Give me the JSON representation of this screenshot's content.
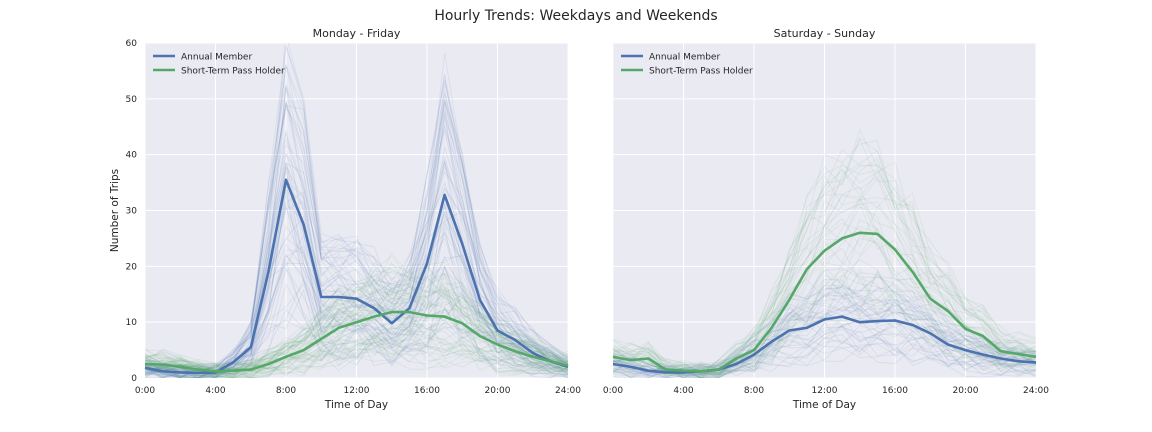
{
  "figure": {
    "title": "Hourly Trends: Weekdays and Weekends"
  },
  "style": {
    "panel_bg": "#EAEAF2",
    "grid": "#FFFFFF",
    "member_color": "#4C72B0",
    "short_term_color": "#55A868",
    "text_color": "#262626"
  },
  "chart_data": [
    {
      "type": "line",
      "title": "Monday - Friday",
      "xlabel": "Time of Day",
      "ylabel": "Number of Trips",
      "xlim": [
        0,
        24
      ],
      "ylim": [
        0,
        60
      ],
      "xticks": [
        0,
        4,
        8,
        12,
        16,
        20,
        24
      ],
      "xtick_labels": [
        "0:00",
        "4:00",
        "8:00",
        "12:00",
        "16:00",
        "20:00",
        "24:00"
      ],
      "yticks": [
        0,
        10,
        20,
        30,
        40,
        50,
        60
      ],
      "ytick_labels": [
        "0",
        "10",
        "20",
        "30",
        "40",
        "50",
        "60"
      ],
      "grid": true,
      "legend": "top-left",
      "x": [
        0,
        1,
        2,
        3,
        4,
        5,
        6,
        7,
        8,
        9,
        10,
        11,
        12,
        13,
        14,
        15,
        16,
        17,
        18,
        19,
        20,
        21,
        22,
        23,
        24
      ],
      "series": [
        {
          "name": "Annual Member",
          "values": [
            1.8,
            1.2,
            1.0,
            0.9,
            1.0,
            2.8,
            5.5,
            19.0,
            35.5,
            27.5,
            14.5,
            14.5,
            14.2,
            12.5,
            9.8,
            12.5,
            20.5,
            32.8,
            24.0,
            14.0,
            8.5,
            6.8,
            4.5,
            3.0,
            2.0
          ]
        },
        {
          "name": "Short-Term Pass Holder",
          "values": [
            2.5,
            2.4,
            2.0,
            1.5,
            1.2,
            1.3,
            1.5,
            2.5,
            3.8,
            5.0,
            7.0,
            9.0,
            10.0,
            11.0,
            11.8,
            11.8,
            11.2,
            11.0,
            9.8,
            7.5,
            6.0,
            4.8,
            3.8,
            3.0,
            2.2
          ]
        }
      ]
    },
    {
      "type": "line",
      "title": "Saturday - Sunday",
      "xlabel": "Time of Day",
      "xlim": [
        0,
        24
      ],
      "ylim": [
        0,
        60
      ],
      "xticks": [
        0,
        4,
        8,
        12,
        16,
        20,
        24
      ],
      "xtick_labels": [
        "0:00",
        "4:00",
        "8:00",
        "12:00",
        "16:00",
        "20:00",
        "24:00"
      ],
      "yticks": [
        0,
        10,
        20,
        30,
        40,
        50,
        60
      ],
      "grid": true,
      "legend": "top-left",
      "x": [
        0,
        1,
        2,
        3,
        4,
        5,
        6,
        7,
        8,
        9,
        10,
        11,
        12,
        13,
        14,
        15,
        16,
        17,
        18,
        19,
        20,
        21,
        22,
        23,
        24
      ],
      "series": [
        {
          "name": "Annual Member",
          "values": [
            2.5,
            2.0,
            1.3,
            1.0,
            1.0,
            1.2,
            1.5,
            2.5,
            4.2,
            6.5,
            8.5,
            9.0,
            10.5,
            11.0,
            10.0,
            10.2,
            10.3,
            9.5,
            8.0,
            6.0,
            5.0,
            4.2,
            3.5,
            3.0,
            2.8
          ]
        },
        {
          "name": "Short-Term Pass Holder",
          "values": [
            3.8,
            3.2,
            3.5,
            1.5,
            1.3,
            1.2,
            1.5,
            3.5,
            5.0,
            9.0,
            14.0,
            19.5,
            22.8,
            25.0,
            26.0,
            25.8,
            23.0,
            19.0,
            14.2,
            12.0,
            8.8,
            7.5,
            4.8,
            4.3,
            3.8
          ]
        }
      ]
    }
  ]
}
